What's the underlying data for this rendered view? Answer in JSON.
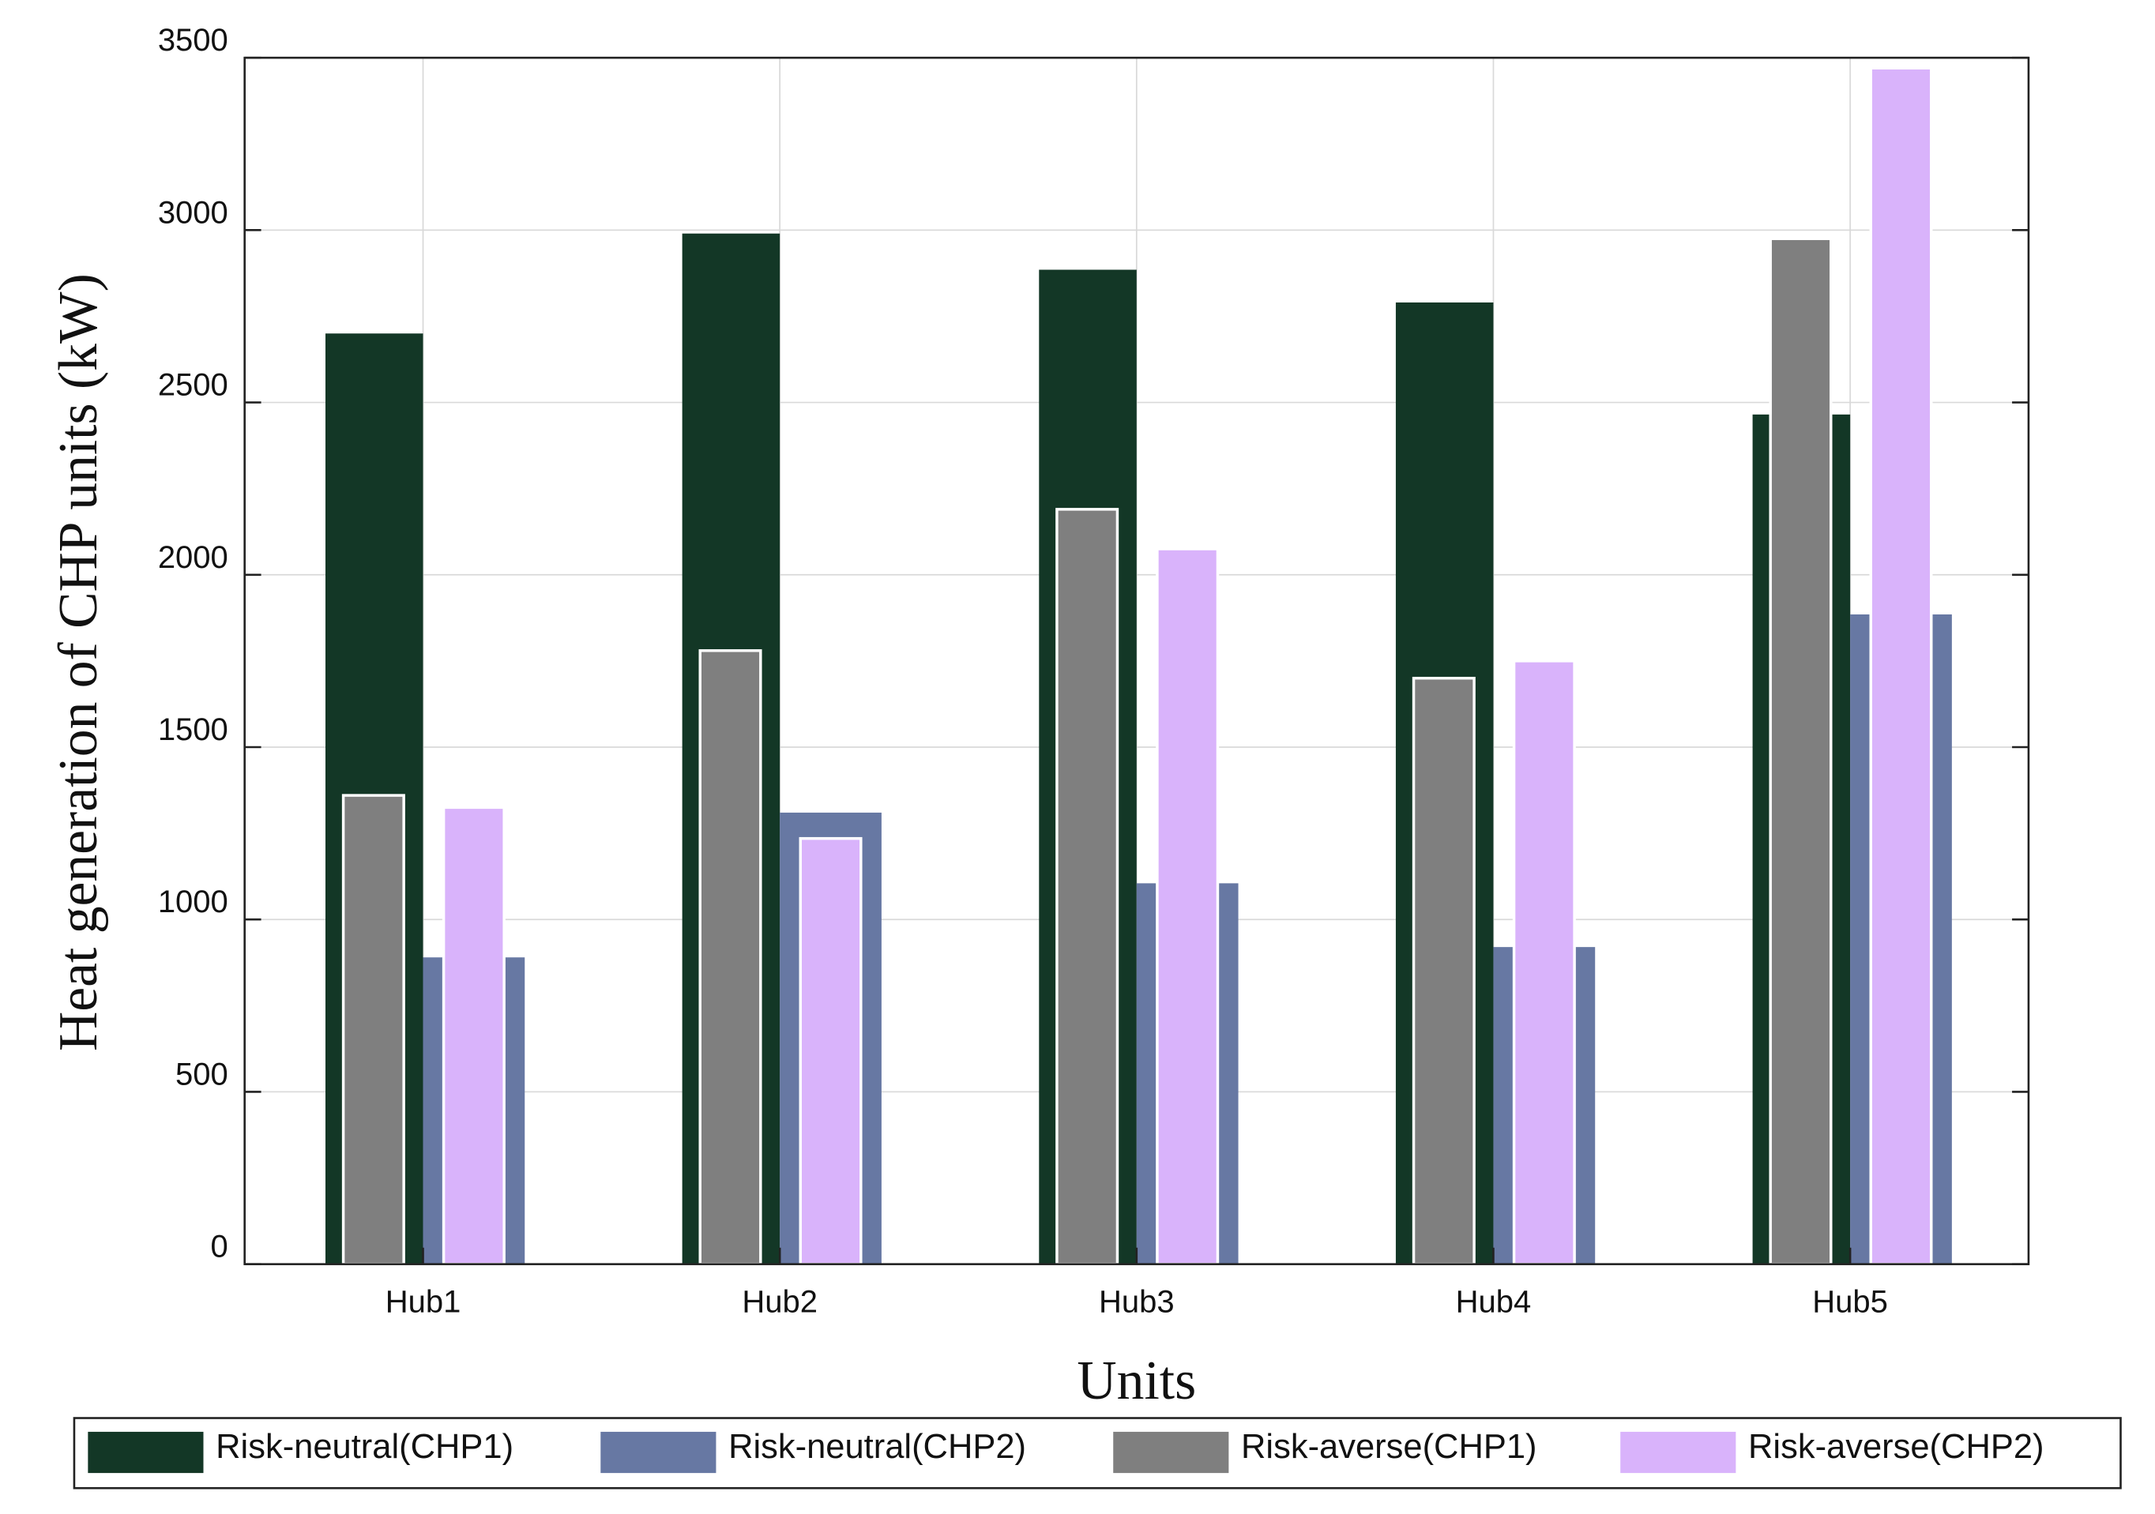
{
  "chart_data": {
    "type": "bar",
    "x_label": "Units",
    "y_label": "Heat generation of CHP units (kW)",
    "categories": [
      "Hub1",
      "Hub2",
      "Hub3",
      "Hub4",
      "Hub5"
    ],
    "series": [
      {
        "name": "Risk-neutral(CHP1)",
        "color": "#133726",
        "values": [
          2700,
          2990,
          2885,
          2790,
          2465
        ]
      },
      {
        "name": "Risk-neutral(CHP2)",
        "color": "#6778a3",
        "values": [
          890,
          1310,
          1105,
          920,
          1885
        ]
      },
      {
        "name": "Risk-averse(CHP1)",
        "color": "#7f7f7f",
        "values": [
          1360,
          1780,
          2190,
          1700,
          2975
        ]
      },
      {
        "name": "Risk-averse(CHP2)",
        "color": "#d9b3fb",
        "values": [
          1325,
          1235,
          2075,
          1750,
          3470
        ]
      }
    ],
    "ylim": [
      0,
      3500
    ],
    "yticks": [
      0,
      500,
      1000,
      1500,
      2000,
      2500,
      3000,
      3500
    ],
    "grid": true
  }
}
